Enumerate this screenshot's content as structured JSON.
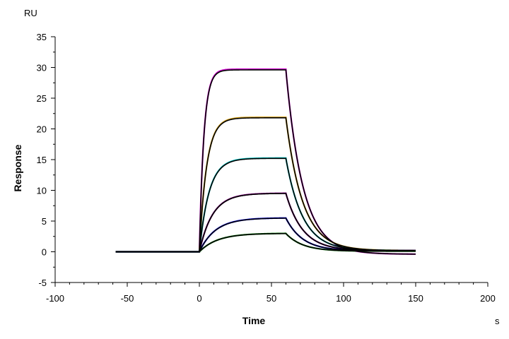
{
  "chart_data": {
    "type": "line",
    "xlabel": "Time",
    "ylabel": "Response",
    "x_unit": "s",
    "y_unit": "RU",
    "xlim": [
      -100,
      200
    ],
    "ylim": [
      -5,
      35
    ],
    "x_ticks": [
      -100,
      -50,
      0,
      50,
      100,
      150,
      200
    ],
    "y_ticks": [
      -5,
      0,
      5,
      10,
      15,
      20,
      25,
      30,
      35
    ],
    "grid": false,
    "legend": "none",
    "association_start": 0,
    "dissociation_start": 60,
    "data_start": -58,
    "data_end": 150,
    "fit_color": "#000000",
    "series": [
      {
        "plateau": 29.6,
        "ka": 0.32,
        "kd": 0.085,
        "end_offset": -0.4,
        "color": "#cc00cc"
      },
      {
        "plateau": 21.8,
        "ka": 0.2,
        "kd": 0.085,
        "end_offset": 0.2,
        "color": "#d4a017"
      },
      {
        "plateau": 15.2,
        "ka": 0.15,
        "kd": 0.085,
        "end_offset": 0.2,
        "color": "#00bfbf"
      },
      {
        "plateau": 9.5,
        "ka": 0.11,
        "kd": 0.085,
        "end_offset": 0.2,
        "color": "#800080"
      },
      {
        "plateau": 5.5,
        "ka": 0.09,
        "kd": 0.085,
        "end_offset": 0.15,
        "color": "#0000ff"
      },
      {
        "plateau": 3.0,
        "ka": 0.08,
        "kd": 0.085,
        "end_offset": 0.1,
        "color": "#008000"
      }
    ]
  }
}
